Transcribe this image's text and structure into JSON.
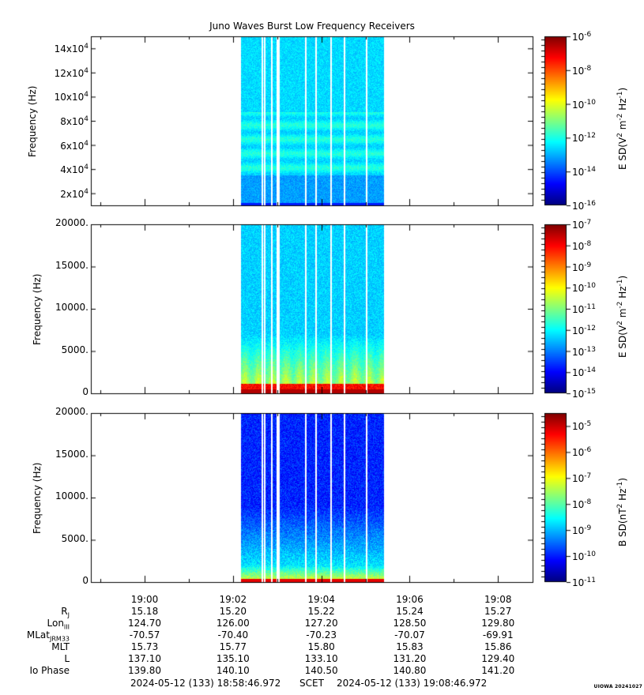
{
  "title": "Juno Waves Burst Low Frequency Receivers",
  "chart_data": [
    {
      "type": "heatmap",
      "ylabel": "Frequency (Hz)",
      "yticks": [
        "2x10^4",
        "4x10^4",
        "6x10^4",
        "8x10^4",
        "10x10^4",
        "12x10^4",
        "14x10^4"
      ],
      "ylim": [
        10000,
        150000
      ],
      "colorbar_label": "E SD(V^2 m^-2 Hz^-1)",
      "colorbar_ticks": [
        "10^-6",
        "10^-8",
        "10^-10",
        "10^-12",
        "10^-14",
        "10^-16"
      ],
      "colorbar_range_exp": [
        -16,
        -6
      ]
    },
    {
      "type": "heatmap",
      "ylabel": "Frequency (Hz)",
      "yticks": [
        "0",
        "5000.",
        "10000.",
        "15000.",
        "20000."
      ],
      "ylim": [
        0,
        20000
      ],
      "colorbar_label": "E SD(V^2 m^-2 Hz^-1)",
      "colorbar_ticks": [
        "10^-7",
        "10^-8",
        "10^-9",
        "10^-10",
        "10^-11",
        "10^-12",
        "10^-13",
        "10^-14",
        "10^-15"
      ],
      "colorbar_range_exp": [
        -15,
        -7
      ]
    },
    {
      "type": "heatmap",
      "ylabel": "Frequency (Hz)",
      "yticks": [
        "0",
        "5000.",
        "10000.",
        "15000.",
        "20000."
      ],
      "ylim": [
        0,
        20000
      ],
      "colorbar_label": "B SD(nT^2 Hz^-1)",
      "colorbar_ticks": [
        "10^-5",
        "10^-6",
        "10^-7",
        "10^-8",
        "10^-9",
        "10^-10",
        "10^-11"
      ],
      "colorbar_range_exp": [
        -11,
        -4.5
      ]
    }
  ],
  "time_axis": {
    "start": "2024-05-12 18:58:46.972",
    "end": "2024-05-12 19:08:46.972",
    "major_ticks": [
      "19:00",
      "19:02",
      "19:04",
      "19:06",
      "19:08"
    ],
    "data_start": "19:02:11",
    "data_end": "19:05:25"
  },
  "ephemeris": {
    "labels": [
      "Rj",
      "LonIII",
      "MLatJRM33",
      "MLT",
      "L",
      "Io Phase"
    ],
    "rows": [
      [
        "15.18",
        "15.20",
        "15.22",
        "15.24",
        "15.27"
      ],
      [
        "124.70",
        "126.00",
        "127.20",
        "128.50",
        "129.80"
      ],
      [
        "-70.57",
        "-70.40",
        "-70.23",
        "-70.07",
        "-69.91"
      ],
      [
        "15.73",
        "15.77",
        "15.80",
        "15.83",
        "15.86"
      ],
      [
        "137.10",
        "135.10",
        "133.10",
        "131.20",
        "129.40"
      ],
      [
        "139.80",
        "140.10",
        "140.50",
        "140.80",
        "141.20"
      ]
    ]
  },
  "footer": {
    "start_text": "2024-05-12 (133) 18:58:46.972",
    "scet": "SCET",
    "end_text": "2024-05-12 (133) 19:08:46.972"
  },
  "credit": "UIOWA 20241027"
}
